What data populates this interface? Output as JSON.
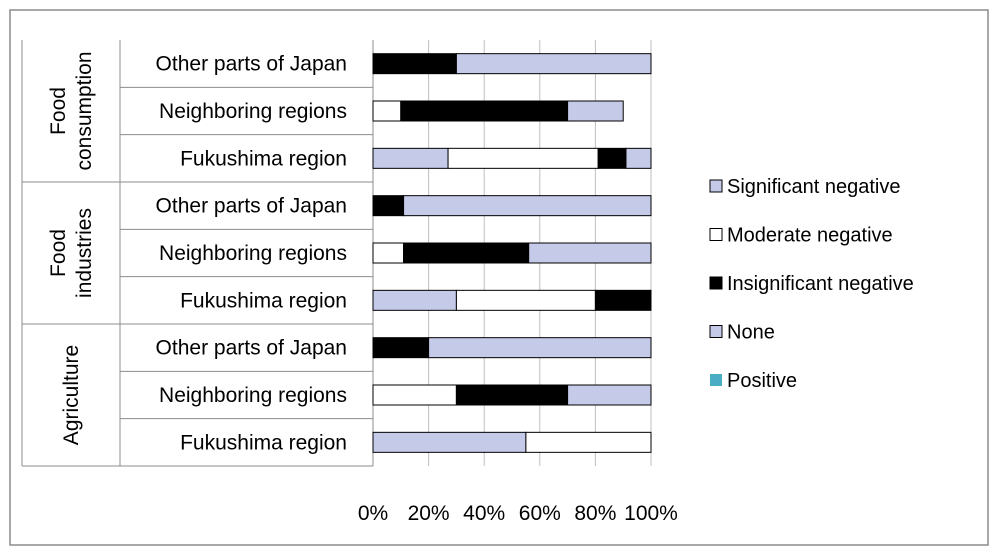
{
  "chart_data": {
    "type": "bar",
    "orientation": "horizontal",
    "stacked": "percent",
    "title": "",
    "xlabel": "",
    "ylabel": "",
    "xlim": [
      0,
      100
    ],
    "x_ticks": [
      "0%",
      "20%",
      "40%",
      "60%",
      "80%",
      "100%"
    ],
    "grid": true,
    "legend_position": "right",
    "groups": [
      {
        "name": "Food consumption",
        "lines": [
          "Food",
          "consumption"
        ]
      },
      {
        "name": "Food industries",
        "lines": [
          "Food",
          "industries"
        ]
      },
      {
        "name": "Agriculture",
        "lines": [
          "Agriculture"
        ]
      }
    ],
    "categories": [
      {
        "label": "Other parts of Japan",
        "group": 0
      },
      {
        "label": "Neighboring regions",
        "group": 0
      },
      {
        "label": "Fukushima region",
        "group": 0
      },
      {
        "label": "Other parts of Japan",
        "group": 1
      },
      {
        "label": "Neighboring regions",
        "group": 1
      },
      {
        "label": "Fukushima region",
        "group": 1
      },
      {
        "label": "Other parts of Japan",
        "group": 2
      },
      {
        "label": "Neighboring regions",
        "group": 2
      },
      {
        "label": "Fukushima region",
        "group": 2
      }
    ],
    "series": [
      {
        "name": "Positive",
        "color": "#4bacc6",
        "values": [
          0,
          0,
          0,
          0,
          0,
          0,
          0,
          0,
          0
        ]
      },
      {
        "name": "None",
        "color": "#c5cae9",
        "values": [
          0,
          0,
          27,
          0,
          0,
          30,
          0,
          0,
          55
        ]
      },
      {
        "name": "Insignificant negative",
        "color": "#000000",
        "values": [
          30,
          0,
          0,
          11,
          0,
          0,
          20,
          0,
          0
        ]
      },
      {
        "name": "Moderate negative",
        "color": "#ffffff",
        "values": [
          0,
          10,
          54,
          0,
          11,
          50,
          0,
          30,
          45
        ]
      },
      {
        "name": "Significant negative",
        "color": "#c5cae9",
        "values": [
          70,
          0,
          0,
          89,
          0,
          0,
          80,
          0,
          0
        ]
      },
      {
        "name": "None",
        "color": "#c5cae9",
        "values": [
          0,
          0,
          0,
          0,
          0,
          0,
          0,
          0,
          0
        ]
      },
      {
        "name": "Insignificant negative",
        "color": "#000000",
        "values": [
          0,
          60,
          10,
          0,
          45,
          20,
          0,
          40,
          0
        ]
      },
      {
        "name": "Significant negative",
        "color": "#c5cae9",
        "values": [
          0,
          20,
          9,
          0,
          44,
          0,
          0,
          30,
          0
        ]
      }
    ],
    "legend": [
      {
        "name": "Significant negative",
        "color": "#c5cae9"
      },
      {
        "name": "Moderate negative",
        "color": "#ffffff"
      },
      {
        "name": "Insignificant negative",
        "color": "#000000"
      },
      {
        "name": "None",
        "color": "#c5cae9"
      },
      {
        "name": "Positive",
        "color": "#4bacc6"
      }
    ]
  }
}
